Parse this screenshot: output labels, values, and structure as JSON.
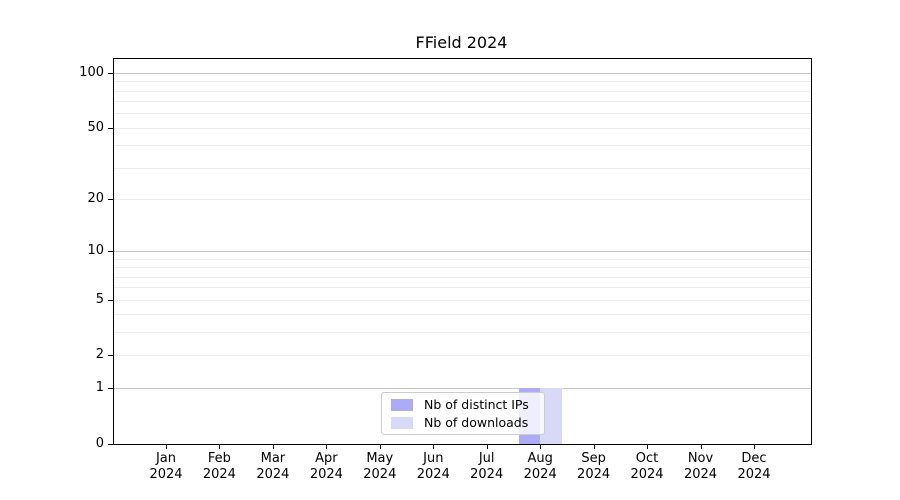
{
  "chart_data": {
    "type": "bar",
    "title": "FField 2024",
    "categories": [
      "Jan",
      "Feb",
      "Mar",
      "Apr",
      "May",
      "Jun",
      "Jul",
      "Aug",
      "Sep",
      "Oct",
      "Nov",
      "Dec"
    ],
    "category_year": "2024",
    "series": [
      {
        "name": "Nb of distinct IPs",
        "color": "#acacf6",
        "values": [
          0,
          0,
          0,
          0,
          0,
          0,
          0,
          1,
          0,
          0,
          0,
          0
        ]
      },
      {
        "name": "Nb of downloads",
        "color": "#d8d8f7",
        "values": [
          0,
          0,
          0,
          0,
          0,
          0,
          0,
          1,
          0,
          0,
          0,
          0
        ]
      }
    ],
    "y_axis": {
      "scale": "log10(1+x)",
      "tick_values": [
        100,
        50,
        20,
        10,
        5,
        2,
        1,
        0
      ],
      "major_gridline_values": [
        100,
        10,
        1
      ],
      "minor_gridline_values": [
        90,
        80,
        70,
        60,
        50,
        40,
        30,
        20,
        9,
        8,
        7,
        6,
        5,
        4,
        3,
        2
      ],
      "range_max": 118,
      "range_min": 0
    },
    "x_axis": {
      "label": "",
      "tick_count": 12
    },
    "legend": {
      "position": "lower center"
    },
    "grid": true,
    "colors": {
      "major_grid": "#c6c6c6",
      "minor_grid": "#ececec",
      "axis": "#000000",
      "background": "#ffffff"
    }
  }
}
